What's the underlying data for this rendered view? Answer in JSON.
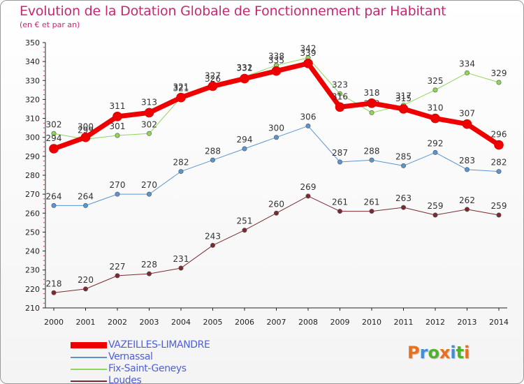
{
  "title": "Evolution de la Dotation Globale de Fonctionnement par Habitant",
  "subtitle": "(en € et par an)",
  "logo_text": "Proxiti",
  "logo_colors": [
    "#e8701e",
    "#3f8fd6",
    "#4fb12c",
    "#e8701e",
    "#3f8fd6",
    "#4fb12c",
    "#e8701e"
  ],
  "chart_data": {
    "type": "line",
    "x": [
      "2000",
      "2001",
      "2002",
      "2003",
      "2004",
      "2005",
      "2006",
      "2007",
      "2008",
      "2009",
      "2010",
      "2011",
      "2012",
      "2013",
      "2014"
    ],
    "ylim": [
      210,
      350
    ],
    "yticks": [
      210,
      220,
      230,
      240,
      250,
      260,
      270,
      280,
      290,
      300,
      310,
      320,
      330,
      340,
      350
    ],
    "grid": false,
    "legend_position": "bottom-left",
    "series": [
      {
        "name": "Loudes",
        "color": "#7b2b30",
        "width": 1,
        "values": [
          218,
          220,
          227,
          228,
          231,
          243,
          251,
          260,
          269,
          261,
          261,
          263,
          259,
          262,
          259
        ],
        "labels": [
          "218",
          "220",
          "227",
          "228",
          "231",
          "243",
          "251",
          "260",
          "269",
          "261",
          "261",
          "263",
          "259",
          "262",
          "259"
        ]
      },
      {
        "name": "Vernassal",
        "color": "#5b95cf",
        "width": 1,
        "values": [
          264,
          264,
          270,
          270,
          282,
          288,
          294,
          300,
          306,
          287,
          288,
          285,
          292,
          283,
          282
        ],
        "labels": [
          "264",
          "264",
          "270",
          "270",
          "282",
          "288",
          "294",
          "300",
          "306",
          "287",
          "288",
          "285",
          "292",
          "283",
          "282"
        ]
      },
      {
        "name": "Fix-Saint-Geneys",
        "color": "#8fd65a",
        "width": 1,
        "values": [
          302,
          299,
          301,
          302,
          321,
          326,
          332,
          338,
          342,
          323,
          313,
          317,
          325,
          334,
          329
        ],
        "labels": [
          "302",
          "299",
          "301",
          "302",
          "321",
          "326",
          "332",
          "338",
          "342",
          "323",
          "313",
          "317",
          "325",
          "334",
          "329"
        ]
      },
      {
        "name": "VAZEILLES-LIMANDRE",
        "color": "#ee0000",
        "width": 7,
        "values": [
          294,
          300,
          311,
          313,
          321,
          327,
          331,
          335,
          339,
          316,
          318,
          315,
          310,
          307,
          296
        ],
        "labels": [
          "294",
          "300",
          "311",
          "313",
          "321",
          "327",
          "331",
          "335",
          "339",
          "316",
          "318",
          "315",
          "310",
          "307",
          "296"
        ]
      }
    ],
    "legend_order": [
      "VAZEILLES-LIMANDRE",
      "Vernassal",
      "Fix-Saint-Geneys",
      "Loudes"
    ]
  }
}
